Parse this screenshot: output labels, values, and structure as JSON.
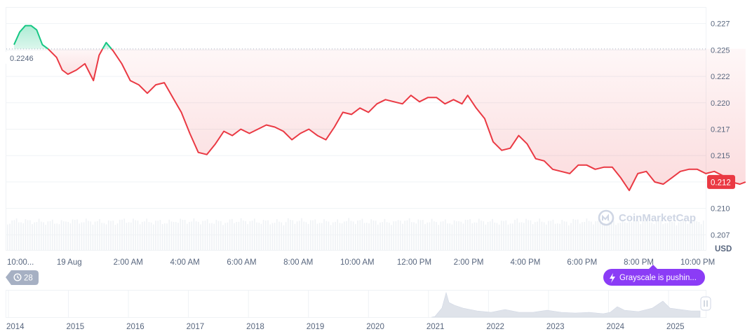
{
  "chart_data": {
    "type": "line",
    "unit": "USD",
    "reference_value": 0.2246,
    "reference_label": "0.2246",
    "last_value": 0.212,
    "last_label": "0.212",
    "ylim": [
      0.2055,
      0.2285
    ],
    "y_ticks": [
      {
        "v": 0.227,
        "label": "0.227"
      },
      {
        "v": 0.2245,
        "label": "0.225"
      },
      {
        "v": 0.222,
        "label": "0.222"
      },
      {
        "v": 0.2195,
        "label": "0.220"
      },
      {
        "v": 0.217,
        "label": "0.217"
      },
      {
        "v": 0.2145,
        "label": "0.215"
      },
      {
        "v": 0.212,
        "label": "0.212"
      },
      {
        "v": 0.2095,
        "label": "0.210"
      },
      {
        "v": 0.207,
        "label": "0.207"
      }
    ],
    "x_ticks": [
      "10:00...",
      "19 Aug",
      "2:00 AM",
      "4:00 AM",
      "6:00 AM",
      "8:00 AM",
      "10:00 AM",
      "12:00 PM",
      "2:00 PM",
      "4:00 PM",
      "6:00 PM",
      "8:00 PM",
      "10:00 PM"
    ],
    "x_hours": [
      -2,
      0,
      2,
      4,
      6,
      8,
      10,
      12,
      14,
      16,
      18,
      20,
      22
    ],
    "series": [
      {
        "points": [
          [
            -2.0,
            0.225
          ],
          [
            -1.8,
            0.2262
          ],
          [
            -1.6,
            0.2268
          ],
          [
            -1.4,
            0.2268
          ],
          [
            -1.2,
            0.2264
          ],
          [
            -1.0,
            0.225
          ],
          [
            -0.8,
            0.2246
          ],
          [
            -0.5,
            0.2238
          ],
          [
            -0.3,
            0.2226
          ],
          [
            -0.1,
            0.2222
          ],
          [
            0.2,
            0.2226
          ],
          [
            0.5,
            0.2232
          ],
          [
            0.8,
            0.2216
          ],
          [
            1.0,
            0.224
          ],
          [
            1.25,
            0.2252
          ],
          [
            1.5,
            0.2244
          ],
          [
            1.8,
            0.2232
          ],
          [
            2.1,
            0.2216
          ],
          [
            2.4,
            0.2212
          ],
          [
            2.7,
            0.2204
          ],
          [
            3.0,
            0.2212
          ],
          [
            3.3,
            0.2214
          ],
          [
            3.6,
            0.22
          ],
          [
            3.9,
            0.2186
          ],
          [
            4.2,
            0.2166
          ],
          [
            4.5,
            0.2148
          ],
          [
            4.8,
            0.2146
          ],
          [
            5.1,
            0.2156
          ],
          [
            5.4,
            0.2168
          ],
          [
            5.7,
            0.2164
          ],
          [
            6.0,
            0.217
          ],
          [
            6.3,
            0.2166
          ],
          [
            6.6,
            0.217
          ],
          [
            6.9,
            0.2174
          ],
          [
            7.2,
            0.2172
          ],
          [
            7.5,
            0.2168
          ],
          [
            7.8,
            0.216
          ],
          [
            8.1,
            0.2166
          ],
          [
            8.4,
            0.217
          ],
          [
            8.7,
            0.2164
          ],
          [
            9.0,
            0.216
          ],
          [
            9.3,
            0.2172
          ],
          [
            9.6,
            0.2186
          ],
          [
            9.9,
            0.2184
          ],
          [
            10.2,
            0.219
          ],
          [
            10.5,
            0.2186
          ],
          [
            10.8,
            0.2194
          ],
          [
            11.1,
            0.2198
          ],
          [
            11.4,
            0.2196
          ],
          [
            11.7,
            0.2194
          ],
          [
            12.0,
            0.2202
          ],
          [
            12.3,
            0.2196
          ],
          [
            12.6,
            0.22
          ],
          [
            12.9,
            0.22
          ],
          [
            13.2,
            0.2194
          ],
          [
            13.5,
            0.2198
          ],
          [
            13.8,
            0.2194
          ],
          [
            14.0,
            0.2202
          ],
          [
            14.3,
            0.219
          ],
          [
            14.6,
            0.218
          ],
          [
            14.9,
            0.2158
          ],
          [
            15.2,
            0.215
          ],
          [
            15.5,
            0.2152
          ],
          [
            15.8,
            0.2164
          ],
          [
            16.1,
            0.2156
          ],
          [
            16.4,
            0.2142
          ],
          [
            16.7,
            0.214
          ],
          [
            17.0,
            0.2132
          ],
          [
            17.3,
            0.213
          ],
          [
            17.6,
            0.2128
          ],
          [
            17.9,
            0.2136
          ],
          [
            18.2,
            0.2136
          ],
          [
            18.5,
            0.2132
          ],
          [
            18.8,
            0.2134
          ],
          [
            19.1,
            0.2134
          ],
          [
            19.4,
            0.2124
          ],
          [
            19.7,
            0.2112
          ],
          [
            20.0,
            0.2128
          ],
          [
            20.3,
            0.213
          ],
          [
            20.6,
            0.212
          ],
          [
            20.9,
            0.2118
          ],
          [
            21.2,
            0.2124
          ],
          [
            21.5,
            0.213
          ],
          [
            21.8,
            0.2132
          ],
          [
            22.1,
            0.2132
          ],
          [
            22.4,
            0.2128
          ],
          [
            22.7,
            0.213
          ],
          [
            23.0,
            0.2126
          ],
          [
            23.3,
            0.212
          ],
          [
            23.6,
            0.2118
          ],
          [
            23.8,
            0.212
          ]
        ]
      }
    ],
    "grid": true,
    "watermark": "CoinMarketCap",
    "tooltip_pill": "Grayscale is pushin...",
    "events_count": "28"
  },
  "navigator": {
    "year_labels": [
      "2014",
      "2015",
      "2016",
      "2017",
      "2018",
      "2019",
      "2020",
      "2021",
      "2022",
      "2023",
      "2024",
      "2025"
    ]
  },
  "colors": {
    "up": "#16c784",
    "down": "#ea3943",
    "grid": "#eff2f5",
    "pill": "#8b3cf6",
    "events_badge": "#a6b0c3"
  },
  "icons": {
    "events": "history-icon",
    "pill": "lightning-icon",
    "handle": "drag-handle-icon",
    "logo": "coinmarketcap-logo-icon"
  }
}
